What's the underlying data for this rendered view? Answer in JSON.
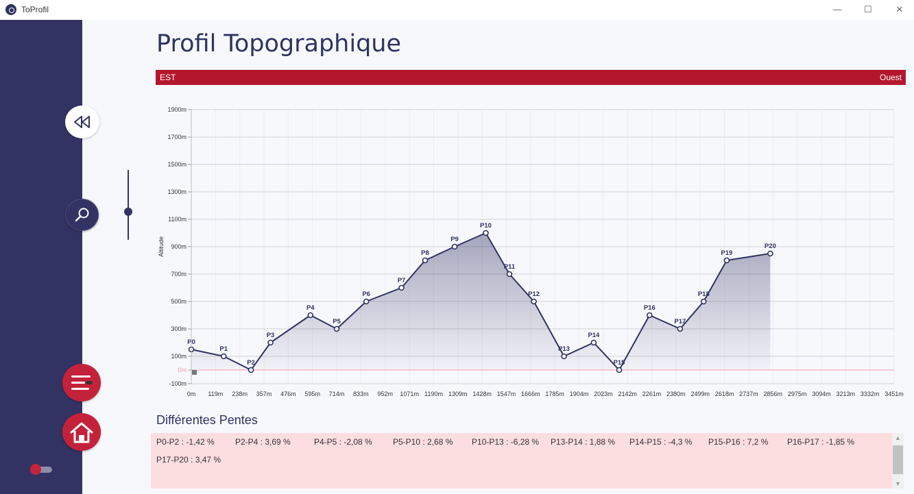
{
  "window": {
    "title": "ToProfil",
    "minimize_glyph": "—",
    "maximize_glyph": "☐",
    "close_glyph": "✕"
  },
  "icons": {
    "app": "globe-icon",
    "rewind": "rewind-icon",
    "zoom": "magnifier-icon",
    "menu": "menu-lines-icon",
    "home": "home-icon"
  },
  "colors": {
    "sidebar": "#333363",
    "accent_red": "#c3223a",
    "direction_bar": "#b4172d",
    "line": "#2e3360",
    "zero_line": "#f4a0a8",
    "slopes_bg": "#fcdde0"
  },
  "page": {
    "title": "Profil Topographique"
  },
  "direction": {
    "left": "EST",
    "right": "Ouest"
  },
  "zoom_slider": {
    "value_fraction": 0.4
  },
  "toggle": {
    "on": false
  },
  "chart_data": {
    "type": "area",
    "ylabel": "Altitude",
    "y_ticks": [
      "1900m",
      "1700m",
      "1500m",
      "1300m",
      "1100m",
      "900m",
      "700m",
      "500m",
      "300m",
      "100m",
      "0m",
      "-100m"
    ],
    "y_tick_values": [
      1900,
      1700,
      1500,
      1300,
      1100,
      900,
      700,
      500,
      300,
      100,
      0,
      -100
    ],
    "ylim": [
      -100,
      1900
    ],
    "x_ticks": [
      "0m",
      "119m",
      "238m",
      "357m",
      "476m",
      "595m",
      "714m",
      "833m",
      "952m",
      "1071m",
      "1190m",
      "1309m",
      "1428m",
      "1547m",
      "1666m",
      "1785m",
      "1904m",
      "2023m",
      "2142m",
      "2261m",
      "2380m",
      "2499m",
      "2618m",
      "2737m",
      "2856m",
      "2975m",
      "3094m",
      "3213m",
      "3332m",
      "3451m"
    ],
    "xlim": [
      0,
      3451
    ],
    "grid": true,
    "points": [
      {
        "label": "P0",
        "x": 0,
        "y": 150
      },
      {
        "label": "P1",
        "x": 159,
        "y": 100
      },
      {
        "label": "P2",
        "x": 293,
        "y": 0
      },
      {
        "label": "P3",
        "x": 389,
        "y": 200
      },
      {
        "label": "P4",
        "x": 585,
        "y": 400
      },
      {
        "label": "P5",
        "x": 714,
        "y": 300
      },
      {
        "label": "P6",
        "x": 859,
        "y": 500
      },
      {
        "label": "P7",
        "x": 1032,
        "y": 600
      },
      {
        "label": "P8",
        "x": 1148,
        "y": 800
      },
      {
        "label": "P9",
        "x": 1293,
        "y": 900
      },
      {
        "label": "P10",
        "x": 1446,
        "y": 1000
      },
      {
        "label": "P11",
        "x": 1562,
        "y": 700
      },
      {
        "label": "P12",
        "x": 1682,
        "y": 500
      },
      {
        "label": "P13",
        "x": 1830,
        "y": 100
      },
      {
        "label": "P14",
        "x": 1976,
        "y": 200
      },
      {
        "label": "P15",
        "x": 2101,
        "y": 0
      },
      {
        "label": "P16",
        "x": 2250,
        "y": 400
      },
      {
        "label": "P17",
        "x": 2400,
        "y": 300
      },
      {
        "label": "P18",
        "x": 2516,
        "y": 500
      },
      {
        "label": "P19",
        "x": 2629,
        "y": 800
      },
      {
        "label": "P20",
        "x": 2843,
        "y": 850
      }
    ]
  },
  "slopes": {
    "title": "Différentes Pentes",
    "items": [
      "P0-P2 : -1,42 %",
      "P2-P4 : 3,69 %",
      "P4-P5 : -2,08 %",
      "P5-P10 : 2,68 %",
      "P10-P13 : -6,28 %",
      "P13-P14 : 1,88 %",
      "P14-P15 : -4,3 %",
      "P15-P16 : 7,2 %",
      "P16-P17 : -1,85 %",
      "P17-P20 : 3,47 %"
    ]
  },
  "scroll": {
    "up": "▲",
    "down": "▼"
  }
}
